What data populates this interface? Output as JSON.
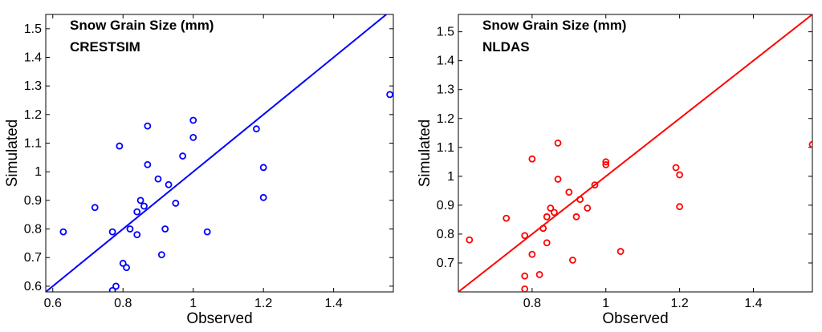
{
  "chart_data": [
    {
      "type": "scatter",
      "title": "Snow Grain Size (mm)",
      "subtitle": "CRESTSIM",
      "xlabel": "Observed",
      "ylabel": "Simulated",
      "xlim": [
        0.58,
        1.57
      ],
      "ylim": [
        0.58,
        1.55
      ],
      "xticks": [
        0.6,
        0.8,
        1,
        1.2,
        1.4
      ],
      "xtick_labels": [
        "0.6",
        "0.8",
        "1",
        "1.2",
        "1.4"
      ],
      "yticks": [
        0.6,
        0.7,
        0.8,
        0.9,
        1,
        1.1,
        1.2,
        1.3,
        1.4,
        1.5
      ],
      "ytick_labels": [
        "0.6",
        "0.7",
        "0.8",
        "0.9",
        "1",
        "1.1",
        "1.2",
        "1.3",
        "1.4",
        "1.5"
      ],
      "color": "#0000ff",
      "reference_line": "1:1",
      "points": [
        {
          "x": 0.63,
          "y": 0.79
        },
        {
          "x": 0.72,
          "y": 0.875
        },
        {
          "x": 0.77,
          "y": 0.79
        },
        {
          "x": 0.77,
          "y": 0.585
        },
        {
          "x": 0.78,
          "y": 0.6
        },
        {
          "x": 0.79,
          "y": 1.09
        },
        {
          "x": 0.8,
          "y": 0.68
        },
        {
          "x": 0.81,
          "y": 0.665
        },
        {
          "x": 0.82,
          "y": 0.8
        },
        {
          "x": 0.84,
          "y": 0.78
        },
        {
          "x": 0.84,
          "y": 0.86
        },
        {
          "x": 0.85,
          "y": 0.9
        },
        {
          "x": 0.86,
          "y": 0.88
        },
        {
          "x": 0.87,
          "y": 1.16
        },
        {
          "x": 0.87,
          "y": 1.025
        },
        {
          "x": 0.9,
          "y": 0.975
        },
        {
          "x": 0.91,
          "y": 0.71
        },
        {
          "x": 0.92,
          "y": 0.8
        },
        {
          "x": 0.93,
          "y": 0.955
        },
        {
          "x": 0.95,
          "y": 0.89
        },
        {
          "x": 0.97,
          "y": 1.055
        },
        {
          "x": 1.0,
          "y": 1.18
        },
        {
          "x": 1.0,
          "y": 1.12
        },
        {
          "x": 1.04,
          "y": 0.79
        },
        {
          "x": 1.18,
          "y": 1.15
        },
        {
          "x": 1.2,
          "y": 1.015
        },
        {
          "x": 1.2,
          "y": 0.91
        },
        {
          "x": 1.56,
          "y": 1.27
        }
      ]
    },
    {
      "type": "scatter",
      "title": "Snow Grain Size (mm)",
      "subtitle": "NLDAS",
      "xlabel": "Observed",
      "ylabel": "Simulated",
      "xlim": [
        0.6,
        1.56
      ],
      "ylim": [
        0.6,
        1.56
      ],
      "xticks": [
        0.8,
        1,
        1.2,
        1.4
      ],
      "xtick_labels": [
        "0.8",
        "1",
        "1.2",
        "1.4"
      ],
      "yticks": [
        0.7,
        0.8,
        0.9,
        1,
        1.1,
        1.2,
        1.3,
        1.4,
        1.5
      ],
      "ytick_labels": [
        "0.7",
        "0.8",
        "0.9",
        "1",
        "1.1",
        "1.2",
        "1.3",
        "1.4",
        "1.5"
      ],
      "color": "#ff0000",
      "reference_line": "1:1",
      "points": [
        {
          "x": 0.63,
          "y": 0.78
        },
        {
          "x": 0.73,
          "y": 0.855
        },
        {
          "x": 0.78,
          "y": 0.795
        },
        {
          "x": 0.78,
          "y": 0.655
        },
        {
          "x": 0.78,
          "y": 0.61
        },
        {
          "x": 0.8,
          "y": 1.06
        },
        {
          "x": 0.8,
          "y": 0.73
        },
        {
          "x": 0.82,
          "y": 0.66
        },
        {
          "x": 0.83,
          "y": 0.82
        },
        {
          "x": 0.84,
          "y": 0.86
        },
        {
          "x": 0.84,
          "y": 0.77
        },
        {
          "x": 0.85,
          "y": 0.89
        },
        {
          "x": 0.86,
          "y": 0.875
        },
        {
          "x": 0.87,
          "y": 1.115
        },
        {
          "x": 0.87,
          "y": 0.99
        },
        {
          "x": 0.9,
          "y": 0.945
        },
        {
          "x": 0.91,
          "y": 0.71
        },
        {
          "x": 0.92,
          "y": 0.86
        },
        {
          "x": 0.93,
          "y": 0.92
        },
        {
          "x": 0.95,
          "y": 0.89
        },
        {
          "x": 0.97,
          "y": 0.97
        },
        {
          "x": 1.0,
          "y": 1.05
        },
        {
          "x": 1.0,
          "y": 1.04
        },
        {
          "x": 1.04,
          "y": 0.74
        },
        {
          "x": 1.19,
          "y": 1.03
        },
        {
          "x": 1.2,
          "y": 1.005
        },
        {
          "x": 1.2,
          "y": 0.895
        },
        {
          "x": 1.56,
          "y": 1.11
        }
      ]
    }
  ]
}
